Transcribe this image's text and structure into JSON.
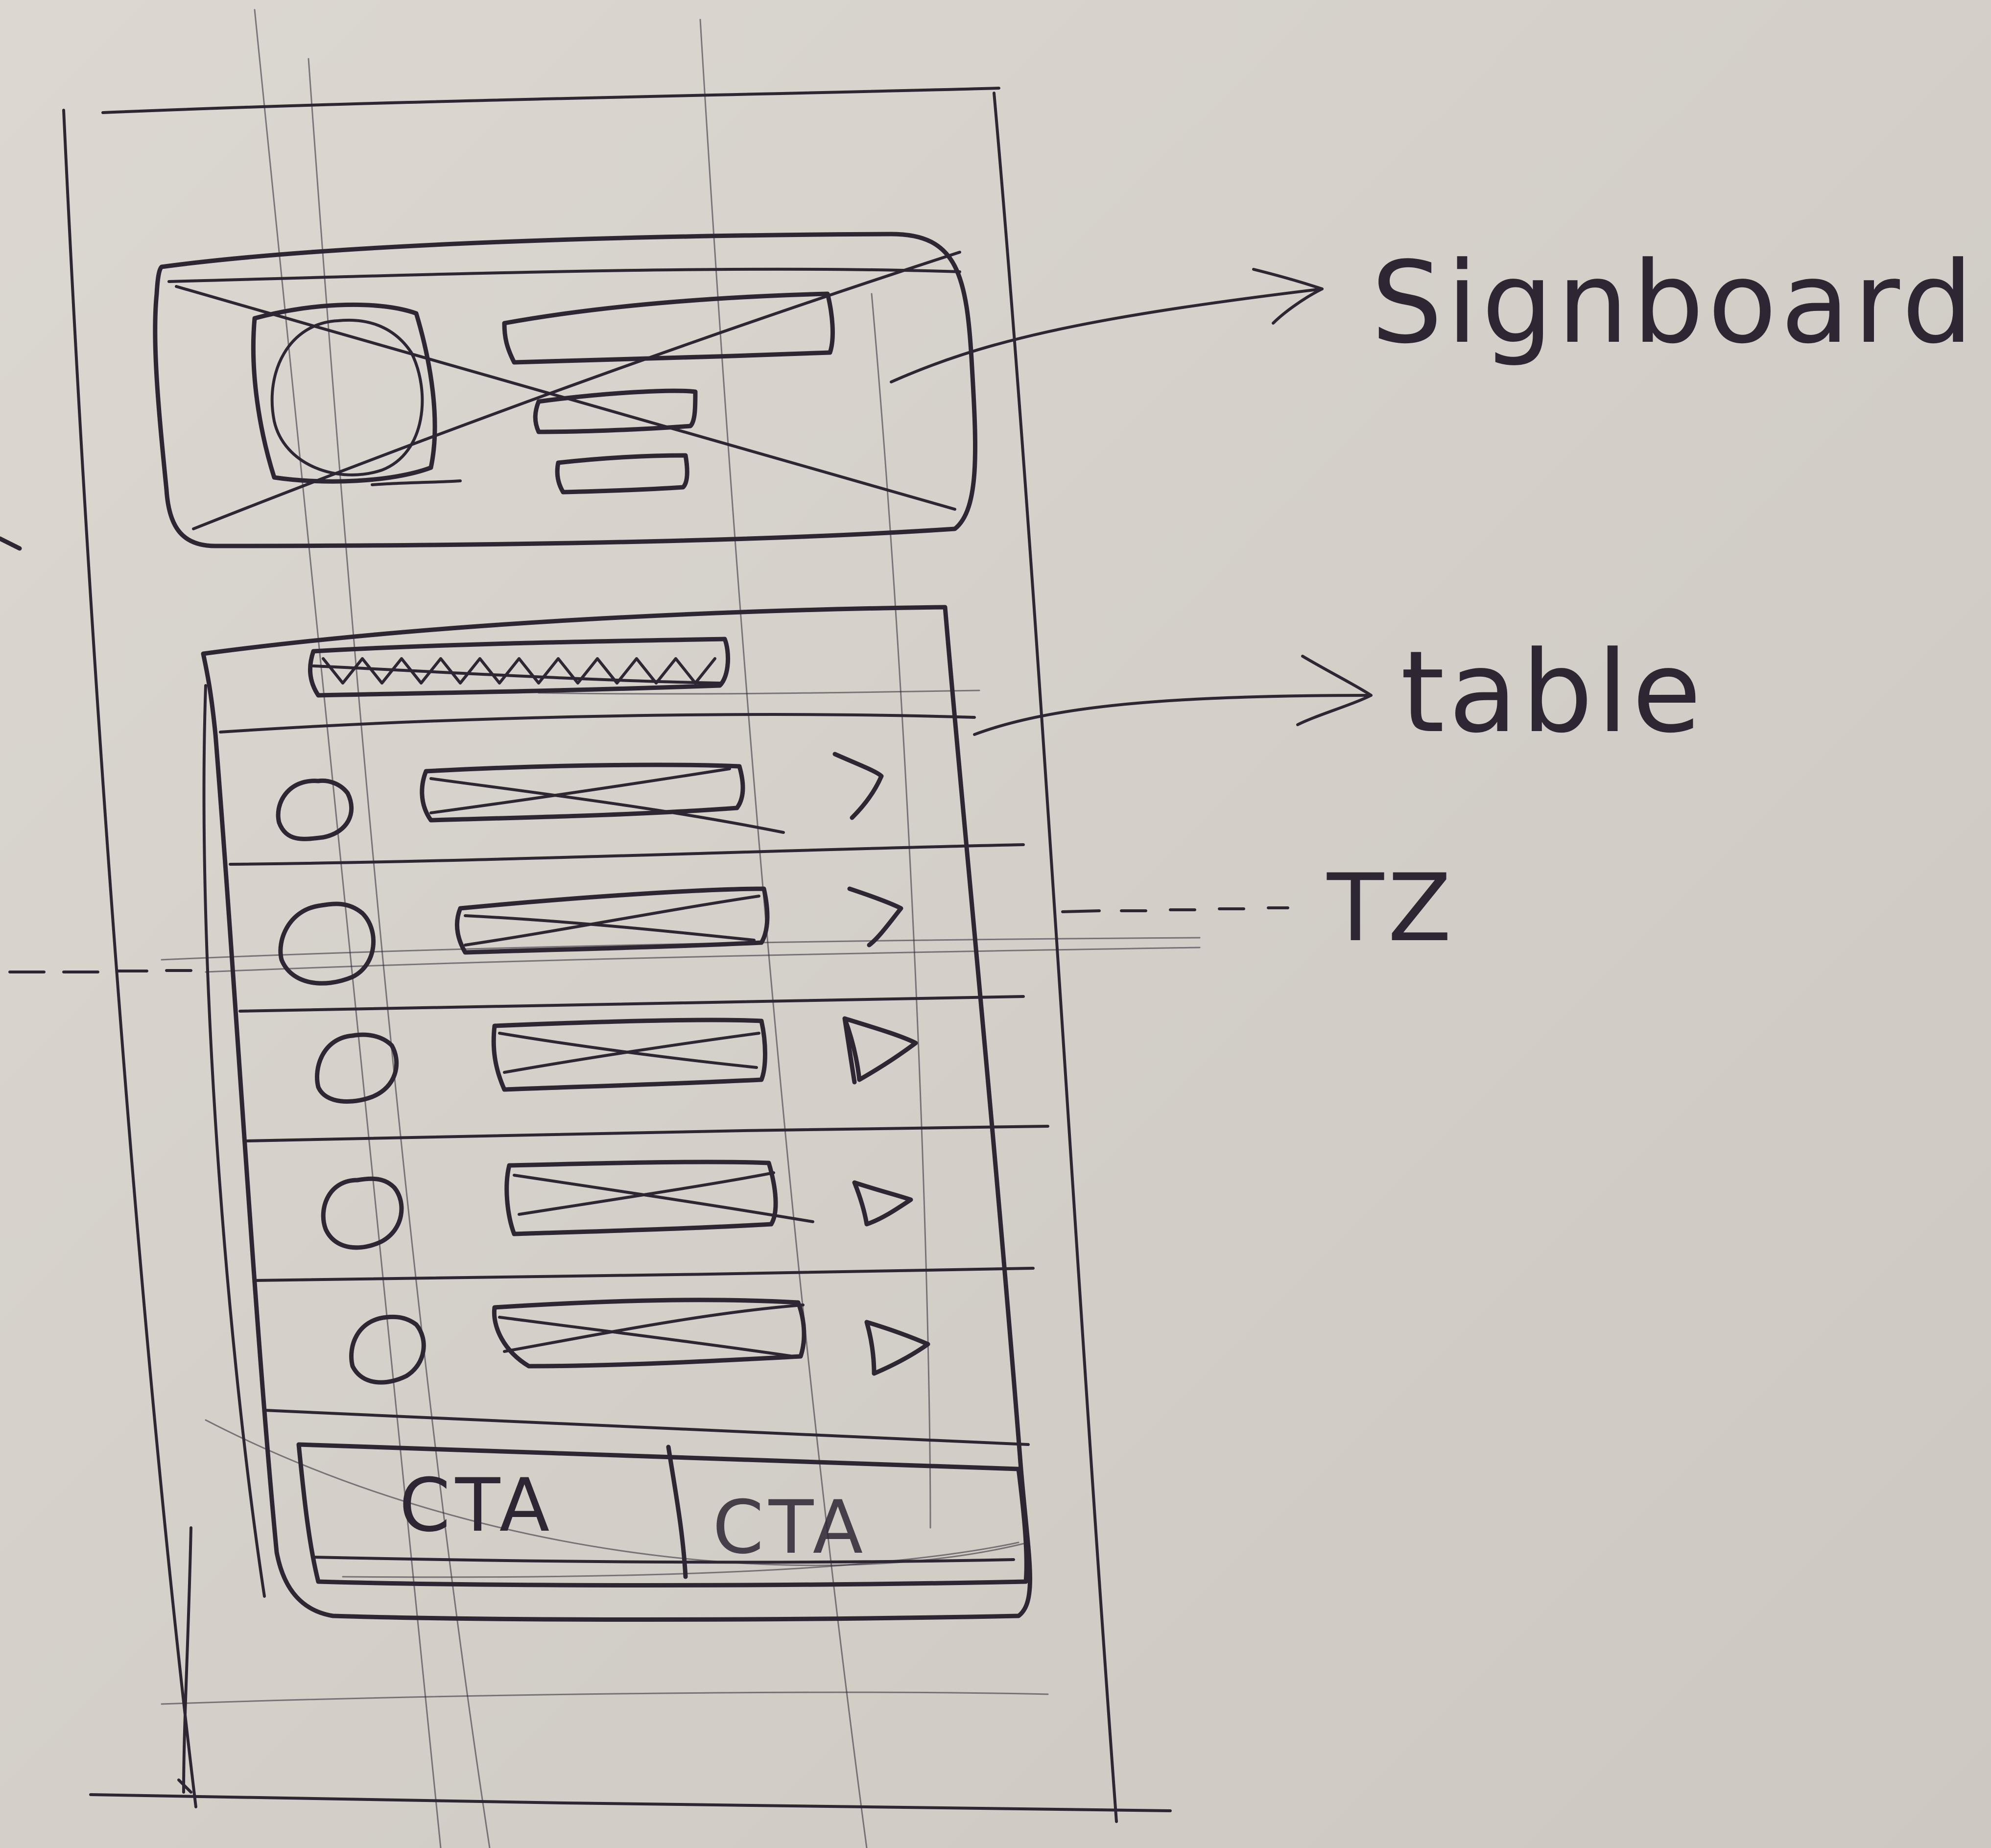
{
  "annotations": {
    "signboard": "Signboard",
    "table": "table",
    "tz": "TZ"
  },
  "footer": {
    "cta_primary": "CTA",
    "cta_secondary": "CTA"
  },
  "table": {
    "rows": [
      {
        "chevron": "open-chevron"
      },
      {
        "chevron": "open-chevron"
      },
      {
        "chevron": "triangle-play"
      },
      {
        "chevron": "triangle-play"
      },
      {
        "chevron": "triangle-play"
      }
    ]
  },
  "colors": {
    "ink": "#2e2633",
    "paper": "#d6d2cb"
  }
}
